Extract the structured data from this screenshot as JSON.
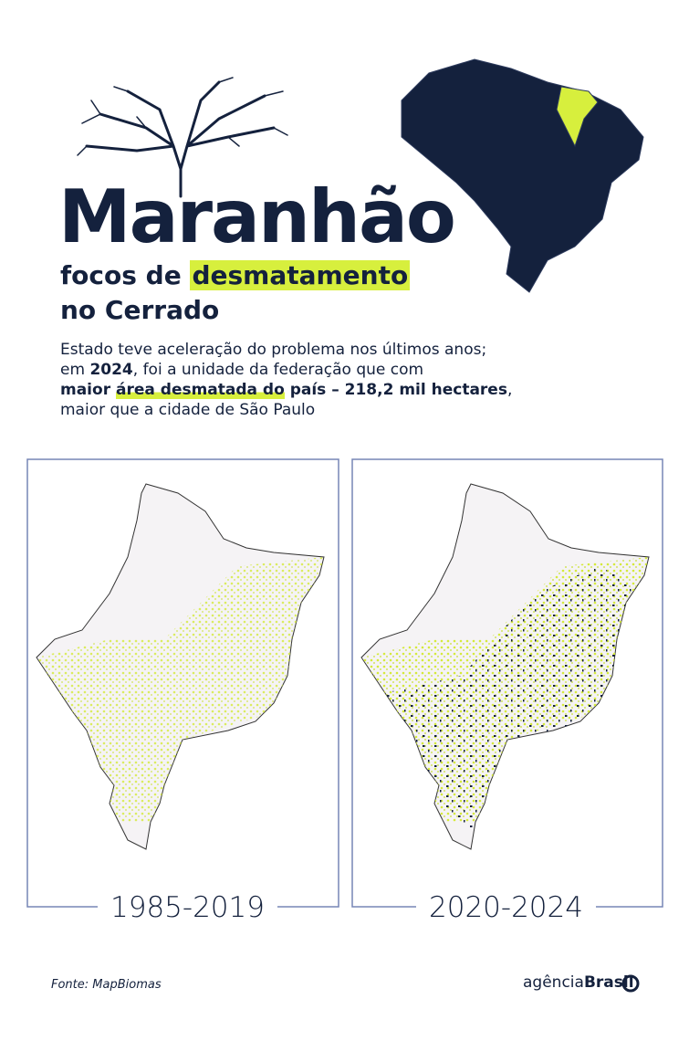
{
  "header": {
    "title": "Maranhão",
    "subtitle_line1_prefix": "focos de ",
    "subtitle_highlight": "desmatamento",
    "subtitle_line2": "no Cerrado"
  },
  "body": {
    "line1": "Estado teve aceleração do problema nos últimos anos;",
    "line2_a": "em ",
    "line2_year": "2024",
    "line2_b": ", foi a unidade da federação que com",
    "line3_a": "maior ",
    "line3_highlight": "área desmatada do",
    "line3_b": " país – 218,2 mil hectares",
    "line3_c": ",",
    "line4": "maior que a cidade de São Paulo"
  },
  "maps": [
    {
      "label": "1985-2019"
    },
    {
      "label": "2020-2024"
    }
  ],
  "footer": {
    "source": "Fonte: MapBiomas",
    "logo_a": "agência",
    "logo_b": "Brasil"
  }
}
